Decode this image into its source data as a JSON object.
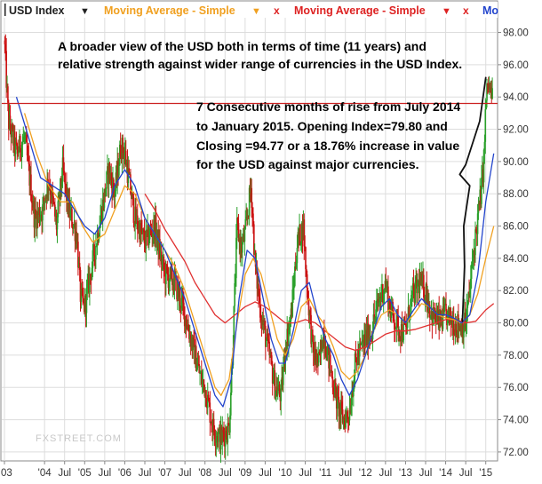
{
  "legend": {
    "series1": {
      "label": "USD Index",
      "arrow": "▼"
    },
    "series2": {
      "label": "Moving Average - Simple",
      "arrow": "▼",
      "remove": "x"
    },
    "series3": {
      "label": "Moving Average - Simple",
      "arrow": "▼",
      "remove": "x"
    },
    "series4": {
      "label": "Mo"
    }
  },
  "annotations": {
    "note1_line1": "A broader view of the USD both in terms of time (11 years) and",
    "note1_line2": "relative strength against wider range of currencies in the USD Index.",
    "note2_line1": "7 Consecutive months of rise from July 2014",
    "note2_line2": "to January 2015. Opening Index=79.80 and",
    "note2_line3": "Closing =94.77 or a 18.76% increase in value",
    "note2_line4": "for the USD against major currencies."
  },
  "watermark": "FXSTREET.COM",
  "colors": {
    "up": "#2aa02a",
    "down": "#cc1111",
    "ma_orange": "#f0a020",
    "ma_red": "#e03030",
    "ma_blue": "#2244cc",
    "hline": "#cc2222",
    "grid": "#dddddd",
    "annotation_curve": "#111111"
  },
  "chart_data": {
    "type": "candlestick",
    "ylim": [
      71.5,
      98.8
    ],
    "yticks": [
      72,
      74,
      76,
      78,
      80,
      82,
      84,
      86,
      88,
      90,
      92,
      94,
      96,
      98
    ],
    "ytick_labels": [
      "72.00",
      "74.00",
      "76.00",
      "78.00",
      "80.00",
      "82.00",
      "84.00",
      "86.00",
      "88.00",
      "90.00",
      "92.00",
      "94.00",
      "96.00",
      "98.00"
    ],
    "xlim": [
      2003.0,
      2015.25
    ],
    "xticks": [
      {
        "label": "03",
        "x": 2003.0
      },
      {
        "label": "'04",
        "x": 2004.0
      },
      {
        "label": "Jul",
        "x": 2004.5
      },
      {
        "label": "'05",
        "x": 2005.0
      },
      {
        "label": "Jul",
        "x": 2005.5
      },
      {
        "label": "'06",
        "x": 2006.0
      },
      {
        "label": "Jul",
        "x": 2006.5
      },
      {
        "label": "'07",
        "x": 2007.0
      },
      {
        "label": "Jul",
        "x": 2007.5
      },
      {
        "label": "'08",
        "x": 2008.0
      },
      {
        "label": "Jul",
        "x": 2008.5
      },
      {
        "label": "'09",
        "x": 2009.0
      },
      {
        "label": "Jul",
        "x": 2009.5
      },
      {
        "label": "'10",
        "x": 2010.0
      },
      {
        "label": "Jul",
        "x": 2010.5
      },
      {
        "label": "'11",
        "x": 2011.0
      },
      {
        "label": "Jul",
        "x": 2011.5
      },
      {
        "label": "'12",
        "x": 2012.0
      },
      {
        "label": "Jul",
        "x": 2012.5
      },
      {
        "label": "'13",
        "x": 2013.0
      },
      {
        "label": "Jul",
        "x": 2013.5
      },
      {
        "label": "'14",
        "x": 2014.0
      },
      {
        "label": "Jul",
        "x": 2014.5
      },
      {
        "label": "'15",
        "x": 2015.0
      }
    ],
    "horizontal_line": 93.6,
    "close_path": [
      [
        2003.0,
        97.5
      ],
      [
        2003.1,
        92.5
      ],
      [
        2003.3,
        90.5
      ],
      [
        2003.5,
        91.5
      ],
      [
        2003.75,
        86.5
      ],
      [
        2003.95,
        87.0
      ],
      [
        2004.1,
        89.0
      ],
      [
        2004.3,
        86.0
      ],
      [
        2004.45,
        89.5
      ],
      [
        2004.6,
        87.0
      ],
      [
        2004.8,
        85.5
      ],
      [
        2004.9,
        81.5
      ],
      [
        2005.0,
        81.0
      ],
      [
        2005.25,
        84.5
      ],
      [
        2005.5,
        88.0
      ],
      [
        2005.6,
        89.5
      ],
      [
        2005.75,
        88.0
      ],
      [
        2005.9,
        91.0
      ],
      [
        2006.0,
        90.5
      ],
      [
        2006.25,
        86.5
      ],
      [
        2006.5,
        85.0
      ],
      [
        2006.75,
        86.0
      ],
      [
        2006.9,
        84.0
      ],
      [
        2007.0,
        83.0
      ],
      [
        2007.25,
        82.5
      ],
      [
        2007.5,
        80.5
      ],
      [
        2007.75,
        78.0
      ],
      [
        2007.9,
        76.5
      ],
      [
        2008.0,
        76.0
      ],
      [
        2008.2,
        73.5
      ],
      [
        2008.4,
        72.8
      ],
      [
        2008.6,
        73.5
      ],
      [
        2008.7,
        79.0
      ],
      [
        2008.8,
        86.0
      ],
      [
        2008.9,
        84.5
      ],
      [
        2009.0,
        85.5
      ],
      [
        2009.15,
        88.5
      ],
      [
        2009.25,
        83.5
      ],
      [
        2009.4,
        80.5
      ],
      [
        2009.6,
        78.0
      ],
      [
        2009.75,
        76.0
      ],
      [
        2009.9,
        75.5
      ],
      [
        2010.0,
        78.5
      ],
      [
        2010.15,
        80.5
      ],
      [
        2010.3,
        85.0
      ],
      [
        2010.45,
        86.0
      ],
      [
        2010.55,
        82.0
      ],
      [
        2010.7,
        78.0
      ],
      [
        2010.85,
        77.5
      ],
      [
        2010.95,
        79.5
      ],
      [
        2011.1,
        77.5
      ],
      [
        2011.3,
        75.0
      ],
      [
        2011.45,
        74.0
      ],
      [
        2011.6,
        74.5
      ],
      [
        2011.75,
        77.5
      ],
      [
        2011.9,
        78.5
      ],
      [
        2012.0,
        79.0
      ],
      [
        2012.15,
        79.5
      ],
      [
        2012.35,
        81.5
      ],
      [
        2012.5,
        82.5
      ],
      [
        2012.6,
        81.0
      ],
      [
        2012.75,
        80.0
      ],
      [
        2012.9,
        79.5
      ],
      [
        2013.0,
        79.5
      ],
      [
        2013.15,
        81.5
      ],
      [
        2013.35,
        82.5
      ],
      [
        2013.5,
        82.0
      ],
      [
        2013.65,
        80.5
      ],
      [
        2013.85,
        80.0
      ],
      [
        2014.0,
        80.5
      ],
      [
        2014.2,
        80.0
      ],
      [
        2014.4,
        79.8
      ],
      [
        2014.5,
        80.0
      ],
      [
        2014.6,
        82.0
      ],
      [
        2014.7,
        84.5
      ],
      [
        2014.8,
        86.5
      ],
      [
        2014.9,
        88.5
      ],
      [
        2014.95,
        90.0
      ],
      [
        2015.0,
        93.5
      ],
      [
        2015.05,
        94.8
      ],
      [
        2015.15,
        94.0
      ]
    ],
    "ma_orange": [
      [
        2003.5,
        93.0
      ],
      [
        2003.8,
        90.5
      ],
      [
        2004.1,
        88.5
      ],
      [
        2004.4,
        87.5
      ],
      [
        2004.7,
        87.5
      ],
      [
        2004.95,
        86.0
      ],
      [
        2005.2,
        85.0
      ],
      [
        2005.5,
        85.5
      ],
      [
        2005.75,
        87.0
      ],
      [
        2006.0,
        88.5
      ],
      [
        2006.25,
        88.0
      ],
      [
        2006.5,
        86.5
      ],
      [
        2006.75,
        85.5
      ],
      [
        2007.0,
        84.5
      ],
      [
        2007.25,
        83.5
      ],
      [
        2007.5,
        82.0
      ],
      [
        2007.75,
        80.0
      ],
      [
        2008.0,
        78.0
      ],
      [
        2008.25,
        76.0
      ],
      [
        2008.4,
        75.5
      ],
      [
        2008.6,
        76.5
      ],
      [
        2008.8,
        80.0
      ],
      [
        2009.0,
        83.0
      ],
      [
        2009.2,
        84.0
      ],
      [
        2009.4,
        83.0
      ],
      [
        2009.6,
        81.0
      ],
      [
        2009.8,
        79.0
      ],
      [
        2010.0,
        78.0
      ],
      [
        2010.2,
        79.0
      ],
      [
        2010.4,
        81.0
      ],
      [
        2010.6,
        81.5
      ],
      [
        2010.8,
        80.5
      ],
      [
        2010.95,
        80.0
      ],
      [
        2011.2,
        78.5
      ],
      [
        2011.4,
        77.0
      ],
      [
        2011.6,
        76.5
      ],
      [
        2011.8,
        77.0
      ],
      [
        2012.0,
        78.0
      ],
      [
        2012.2,
        79.5
      ],
      [
        2012.4,
        80.5
      ],
      [
        2012.6,
        80.8
      ],
      [
        2012.8,
        80.5
      ],
      [
        2013.0,
        80.0
      ],
      [
        2013.2,
        80.5
      ],
      [
        2013.4,
        81.2
      ],
      [
        2013.6,
        81.0
      ],
      [
        2013.8,
        80.5
      ],
      [
        2014.0,
        80.3
      ],
      [
        2014.2,
        80.2
      ],
      [
        2014.4,
        80.0
      ],
      [
        2014.6,
        80.5
      ],
      [
        2014.8,
        81.8
      ],
      [
        2015.0,
        84.0
      ],
      [
        2015.2,
        86.0
      ]
    ],
    "ma_red": [
      [
        2006.5,
        88.0
      ],
      [
        2006.75,
        87.0
      ],
      [
        2007.0,
        85.8
      ],
      [
        2007.25,
        84.8
      ],
      [
        2007.5,
        83.8
      ],
      [
        2007.75,
        82.5
      ],
      [
        2008.0,
        81.5
      ],
      [
        2008.25,
        80.5
      ],
      [
        2008.5,
        80.0
      ],
      [
        2008.75,
        80.5
      ],
      [
        2009.0,
        81.0
      ],
      [
        2009.25,
        81.3
      ],
      [
        2009.5,
        81.0
      ],
      [
        2009.75,
        80.5
      ],
      [
        2010.0,
        80.0
      ],
      [
        2010.25,
        80.0
      ],
      [
        2010.5,
        80.2
      ],
      [
        2010.75,
        80.0
      ],
      [
        2011.0,
        79.5
      ],
      [
        2011.25,
        79.0
      ],
      [
        2011.5,
        78.5
      ],
      [
        2011.75,
        78.3
      ],
      [
        2012.0,
        78.5
      ],
      [
        2012.25,
        78.9
      ],
      [
        2012.5,
        79.3
      ],
      [
        2012.75,
        79.5
      ],
      [
        2013.0,
        79.5
      ],
      [
        2013.25,
        79.6
      ],
      [
        2013.5,
        79.8
      ],
      [
        2013.75,
        80.0
      ],
      [
        2014.0,
        80.2
      ],
      [
        2014.25,
        80.2
      ],
      [
        2014.5,
        80.0
      ],
      [
        2014.75,
        80.1
      ],
      [
        2015.0,
        80.8
      ],
      [
        2015.2,
        81.2
      ]
    ],
    "ma_blue": [
      [
        2003.3,
        94.0
      ],
      [
        2003.6,
        91.5
      ],
      [
        2003.9,
        89.0
      ],
      [
        2004.2,
        88.5
      ],
      [
        2004.5,
        88.0
      ],
      [
        2004.75,
        87.0
      ],
      [
        2005.0,
        86.0
      ],
      [
        2005.25,
        85.5
      ],
      [
        2005.5,
        86.5
      ],
      [
        2005.75,
        88.5
      ],
      [
        2006.0,
        89.5
      ],
      [
        2006.25,
        88.5
      ],
      [
        2006.5,
        86.5
      ],
      [
        2006.75,
        85.5
      ],
      [
        2007.0,
        84.5
      ],
      [
        2007.25,
        83.0
      ],
      [
        2007.5,
        81.5
      ],
      [
        2007.75,
        79.5
      ],
      [
        2008.0,
        77.5
      ],
      [
        2008.25,
        75.5
      ],
      [
        2008.45,
        74.8
      ],
      [
        2008.65,
        76.5
      ],
      [
        2008.85,
        81.5
      ],
      [
        2009.05,
        84.5
      ],
      [
        2009.25,
        84.0
      ],
      [
        2009.45,
        81.5
      ],
      [
        2009.65,
        79.0
      ],
      [
        2009.85,
        77.5
      ],
      [
        2010.0,
        77.5
      ],
      [
        2010.2,
        79.5
      ],
      [
        2010.4,
        82.0
      ],
      [
        2010.6,
        82.5
      ],
      [
        2010.8,
        80.5
      ],
      [
        2011.0,
        79.0
      ],
      [
        2011.2,
        78.0
      ],
      [
        2011.4,
        76.5
      ],
      [
        2011.6,
        75.5
      ],
      [
        2011.8,
        76.5
      ],
      [
        2012.0,
        78.0
      ],
      [
        2012.2,
        79.5
      ],
      [
        2012.4,
        81.0
      ],
      [
        2012.6,
        81.5
      ],
      [
        2012.8,
        80.5
      ],
      [
        2013.0,
        80.0
      ],
      [
        2013.2,
        80.8
      ],
      [
        2013.4,
        81.5
      ],
      [
        2013.6,
        81.0
      ],
      [
        2013.8,
        80.5
      ],
      [
        2014.0,
        80.5
      ],
      [
        2014.2,
        80.3
      ],
      [
        2014.4,
        80.0
      ],
      [
        2014.6,
        80.5
      ],
      [
        2014.8,
        83.0
      ],
      [
        2015.0,
        87.5
      ],
      [
        2015.2,
        90.5
      ]
    ],
    "annotation_curve": [
      [
        2014.42,
        80.1
      ],
      [
        2014.47,
        83.5
      ],
      [
        2014.45,
        86.0
      ],
      [
        2014.6,
        88.5
      ],
      [
        2014.35,
        89.2
      ],
      [
        2014.5,
        89.8
      ],
      [
        2014.85,
        92.5
      ],
      [
        2015.0,
        95.2
      ]
    ]
  }
}
